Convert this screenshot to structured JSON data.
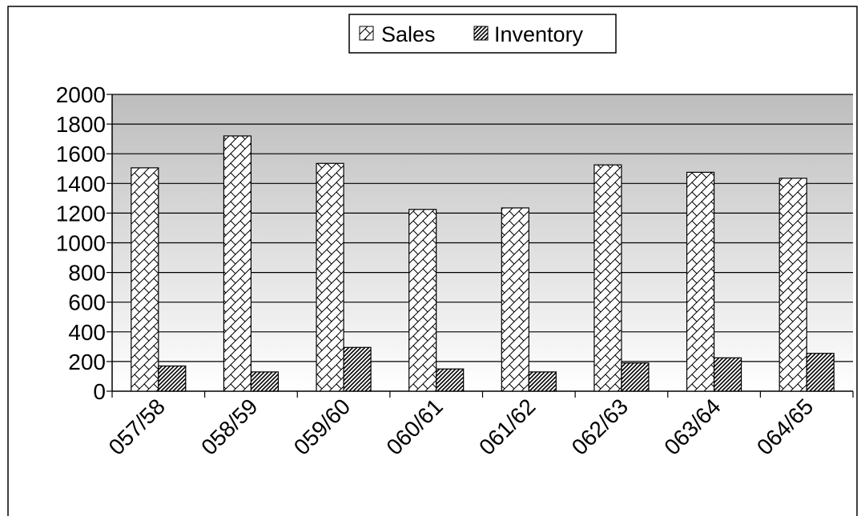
{
  "chart_data": {
    "type": "bar",
    "categories": [
      "057/58",
      "058/59",
      "059/60",
      "060/61",
      "061/62",
      "062/63",
      "063/64",
      "064/65"
    ],
    "series": [
      {
        "name": "Sales",
        "values": [
          1505,
          1720,
          1535,
          1225,
          1235,
          1525,
          1475,
          1435
        ]
      },
      {
        "name": "Inventory",
        "values": [
          170,
          130,
          295,
          150,
          130,
          190,
          225,
          255
        ]
      }
    ],
    "yticks": [
      "0",
      "200",
      "400",
      "600",
      "800",
      "1000",
      "1200",
      "1400",
      "1600",
      "1800",
      "2000"
    ],
    "ylim": [
      0,
      2000
    ],
    "grid": true,
    "legend_position": "top-center",
    "title": "",
    "xlabel": "",
    "ylabel": ""
  }
}
